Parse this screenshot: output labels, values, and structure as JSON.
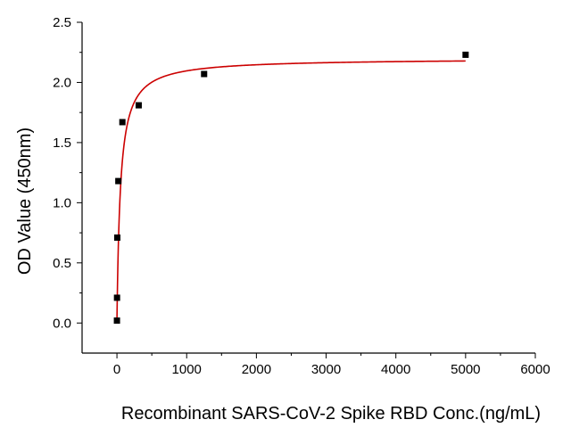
{
  "chart_data": {
    "type": "scatter",
    "title": "",
    "xlabel": "Recombinant SARS-CoV-2 Spike RBD Conc.(ng/mL)",
    "ylabel": "OD Value (450nm)",
    "xlim": [
      -500,
      6000
    ],
    "ylim": [
      -0.25,
      2.5
    ],
    "x_ticks": [
      0,
      1000,
      2000,
      3000,
      4000,
      5000,
      6000
    ],
    "x_tick_labels": [
      "0",
      "1000",
      "2000",
      "3000",
      "4000",
      "5000",
      "6000"
    ],
    "y_ticks": [
      0.0,
      0.5,
      1.0,
      1.5,
      2.0,
      2.5
    ],
    "y_tick_labels": [
      "0.0",
      "0.5",
      "1.0",
      "1.5",
      "2.0",
      "2.5"
    ],
    "grid": false,
    "legend": "none",
    "series": [
      {
        "kind": "points",
        "marker": "square",
        "color": "#000000",
        "x": [
          0,
          1.2,
          5,
          20,
          78,
          312,
          1250,
          5000
        ],
        "y": [
          0.02,
          0.21,
          0.71,
          1.18,
          1.67,
          1.81,
          2.07,
          2.23
        ]
      },
      {
        "kind": "fit-curve",
        "color": "#cc0000",
        "x_range": [
          0,
          5000
        ],
        "model": "hyperbolic",
        "params": {
          "bottom": 0.02,
          "top": 2.2,
          "k": 50
        }
      }
    ]
  }
}
